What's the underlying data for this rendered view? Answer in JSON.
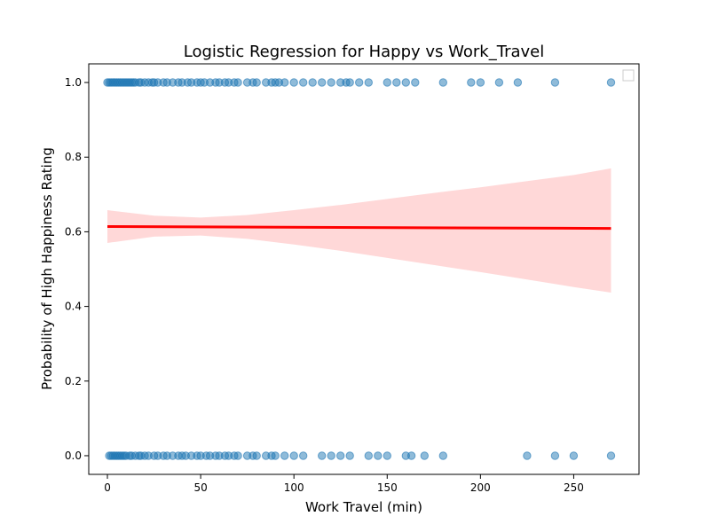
{
  "chart_data": {
    "type": "scatter",
    "title": "Logistic Regression for Happy vs Work_Travel",
    "xlabel": "Work Travel (min)",
    "ylabel": "Probability of High Happiness Rating",
    "xlim": [
      -10,
      285
    ],
    "ylim": [
      -0.05,
      1.05
    ],
    "x_ticks": [
      0,
      50,
      100,
      150,
      200,
      250
    ],
    "y_ticks": [
      0.0,
      0.2,
      0.4,
      0.6,
      0.8,
      1.0
    ],
    "x_tick_labels": [
      "0",
      "50",
      "100",
      "150",
      "200",
      "250"
    ],
    "y_tick_labels": [
      "0.0",
      "0.2",
      "0.4",
      "0.6",
      "0.8",
      "1.0"
    ],
    "legend": "top-right",
    "grid": false,
    "point_color": "#1f77b4",
    "line_color": "#ff0000",
    "band_color": "#ff9999",
    "series": [
      {
        "values_x": [
          0,
          1,
          2,
          3,
          4,
          5,
          6,
          7,
          8,
          9,
          10,
          11,
          12,
          13,
          14,
          15,
          17,
          18,
          20,
          22,
          24,
          25,
          27,
          30,
          32,
          35,
          38,
          40,
          43,
          45,
          48,
          50,
          52,
          55,
          58,
          60,
          63,
          65,
          68,
          70,
          75,
          78,
          80,
          85,
          88,
          90,
          92,
          95,
          100,
          105,
          110,
          115,
          120,
          125,
          128,
          130,
          135,
          140,
          150,
          155,
          160,
          165,
          180,
          195,
          200,
          210,
          220,
          240,
          270
        ],
        "values_y": [
          1,
          1,
          1,
          1,
          1,
          1,
          1,
          1,
          1,
          1,
          1,
          1,
          1,
          1,
          1,
          1,
          1,
          1,
          1,
          1,
          1,
          1,
          1,
          1,
          1,
          1,
          1,
          1,
          1,
          1,
          1,
          1,
          1,
          1,
          1,
          1,
          1,
          1,
          1,
          1,
          1,
          1,
          1,
          1,
          1,
          1,
          1,
          1,
          1,
          1,
          1,
          1,
          1,
          1,
          1,
          1,
          1,
          1,
          1,
          1,
          1,
          1,
          1,
          1,
          1,
          1,
          1,
          1,
          1
        ]
      },
      {
        "values_x": [
          1,
          2,
          3,
          4,
          5,
          6,
          7,
          8,
          9,
          10,
          12,
          13,
          15,
          17,
          18,
          20,
          22,
          25,
          27,
          30,
          32,
          35,
          38,
          40,
          42,
          45,
          48,
          50,
          53,
          55,
          58,
          60,
          63,
          65,
          68,
          70,
          75,
          78,
          80,
          85,
          88,
          90,
          95,
          100,
          105,
          115,
          120,
          125,
          130,
          140,
          145,
          150,
          160,
          163,
          170,
          180,
          225,
          240,
          250,
          270
        ],
        "values_y": [
          0,
          0,
          0,
          0,
          0,
          0,
          0,
          0,
          0,
          0,
          0,
          0,
          0,
          0,
          0,
          0,
          0,
          0,
          0,
          0,
          0,
          0,
          0,
          0,
          0,
          0,
          0,
          0,
          0,
          0,
          0,
          0,
          0,
          0,
          0,
          0,
          0,
          0,
          0,
          0,
          0,
          0,
          0,
          0,
          0,
          0,
          0,
          0,
          0,
          0,
          0,
          0,
          0,
          0,
          0,
          0,
          0,
          0,
          0,
          0
        ]
      }
    ],
    "fit_line": {
      "x": [
        0,
        270
      ],
      "y": [
        0.614,
        0.609
      ]
    },
    "confidence_band": {
      "x": [
        0,
        25,
        50,
        75,
        100,
        125,
        150,
        175,
        200,
        225,
        250,
        270
      ],
      "lower": [
        0.57,
        0.587,
        0.59,
        0.581,
        0.566,
        0.549,
        0.53,
        0.511,
        0.492,
        0.472,
        0.452,
        0.437
      ],
      "upper": [
        0.658,
        0.643,
        0.638,
        0.645,
        0.658,
        0.672,
        0.688,
        0.704,
        0.719,
        0.736,
        0.752,
        0.77
      ]
    }
  }
}
